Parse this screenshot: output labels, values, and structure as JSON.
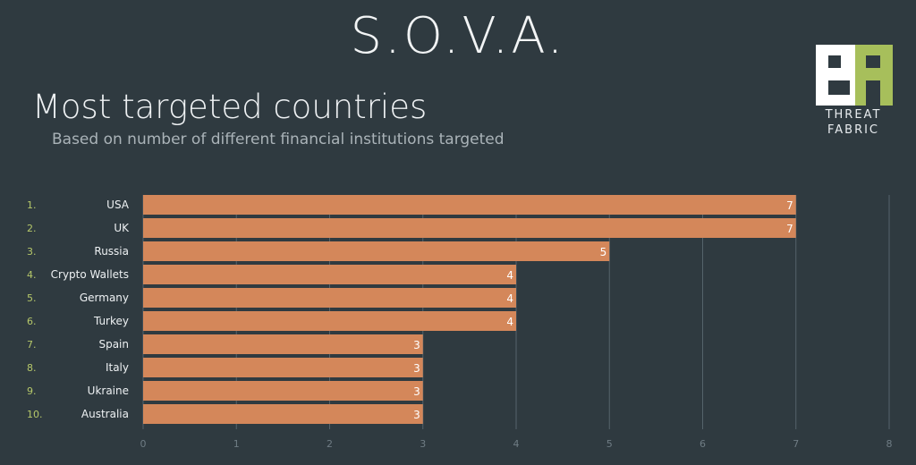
{
  "header": {
    "title": "S.O.V.A."
  },
  "logo": {
    "line1": "THREAT",
    "line2": "FABRIC"
  },
  "chart_data": {
    "type": "bar",
    "orientation": "horizontal",
    "title": "Most targeted countries",
    "subtitle": "Based on number of different financial institutions targeted",
    "ranks": [
      "1.",
      "2.",
      "3.",
      "4.",
      "5.",
      "6.",
      "7.",
      "8.",
      "9.",
      "10."
    ],
    "categories": [
      "USA",
      "UK",
      "Russia",
      "Crypto Wallets",
      "Germany",
      "Turkey",
      "Spain",
      "Italy",
      "Ukraine",
      "Australia"
    ],
    "values": [
      7,
      7,
      5,
      4,
      4,
      4,
      3,
      3,
      3,
      3
    ],
    "xlim": [
      0,
      8
    ],
    "xticks": [
      0,
      1,
      2,
      3,
      4,
      5,
      6,
      7,
      8
    ],
    "grid": true,
    "bar_color": "#d4875a",
    "rank_color": "#b6c86a"
  }
}
